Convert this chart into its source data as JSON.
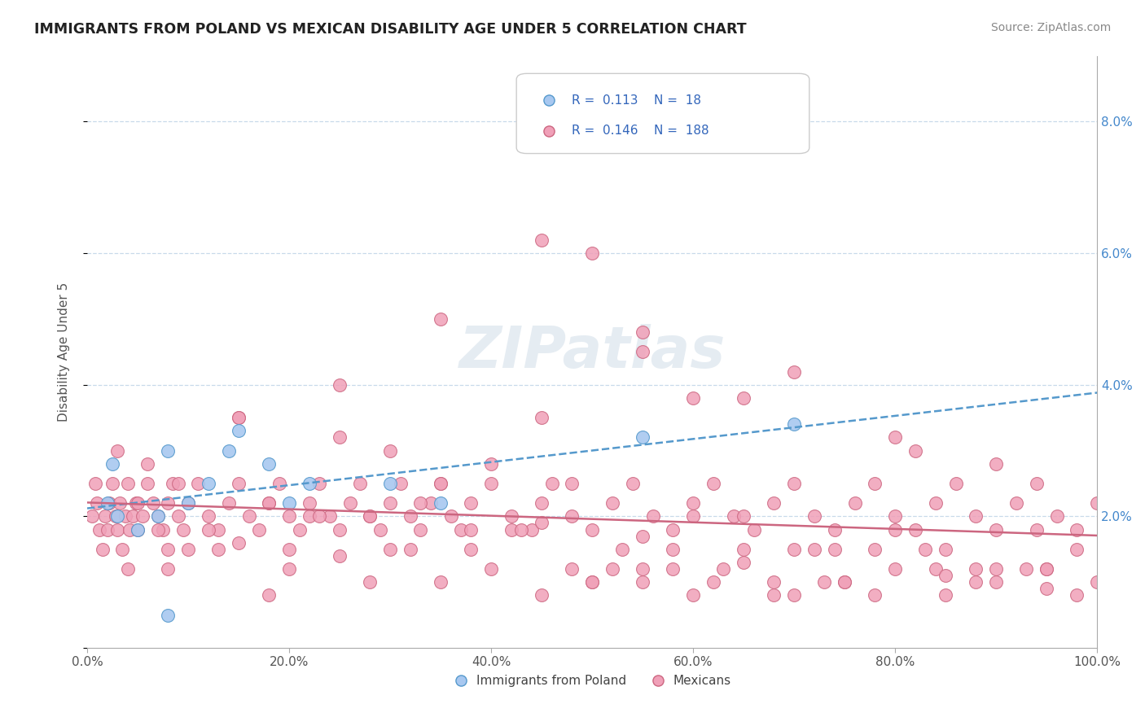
{
  "title": "IMMIGRANTS FROM POLAND VS MEXICAN DISABILITY AGE UNDER 5 CORRELATION CHART",
  "source": "Source: ZipAtlas.com",
  "ylabel": "Disability Age Under 5",
  "xlim": [
    0.0,
    1.0
  ],
  "ylim": [
    0.0,
    0.09
  ],
  "yticks": [
    0.0,
    0.02,
    0.04,
    0.06,
    0.08
  ],
  "ytick_labels": [
    "",
    "2.0%",
    "4.0%",
    "6.0%",
    "8.0%"
  ],
  "xticks": [
    0.0,
    0.2,
    0.4,
    0.6,
    0.8,
    1.0
  ],
  "xtick_labels": [
    "0.0%",
    "20.0%",
    "40.0%",
    "60.0%",
    "80.0%",
    "100.0%"
  ],
  "legend_R_poland": "0.113",
  "legend_N_poland": "18",
  "legend_R_mexican": "0.146",
  "legend_N_mexican": "188",
  "color_poland_fill": "#a8c8f0",
  "color_poland_edge": "#5599cc",
  "color_mexican_fill": "#f0a0b8",
  "color_mexican_edge": "#cc6680",
  "color_poland_trendline": "#5599cc",
  "color_mexican_trendline": "#cc6680",
  "poland_x": [
    0.02,
    0.025,
    0.03,
    0.05,
    0.07,
    0.08,
    0.1,
    0.12,
    0.14,
    0.18,
    0.2,
    0.22,
    0.3,
    0.35,
    0.55,
    0.7,
    0.08,
    0.15
  ],
  "poland_y": [
    0.022,
    0.028,
    0.02,
    0.018,
    0.02,
    0.03,
    0.022,
    0.025,
    0.03,
    0.028,
    0.022,
    0.025,
    0.025,
    0.022,
    0.032,
    0.034,
    0.005,
    0.033
  ],
  "mexican_x": [
    0.005,
    0.008,
    0.01,
    0.012,
    0.015,
    0.018,
    0.02,
    0.022,
    0.025,
    0.028,
    0.03,
    0.032,
    0.035,
    0.038,
    0.04,
    0.042,
    0.045,
    0.048,
    0.05,
    0.055,
    0.06,
    0.065,
    0.07,
    0.075,
    0.08,
    0.085,
    0.09,
    0.095,
    0.1,
    0.11,
    0.12,
    0.13,
    0.14,
    0.15,
    0.16,
    0.17,
    0.18,
    0.19,
    0.2,
    0.21,
    0.22,
    0.23,
    0.24,
    0.25,
    0.26,
    0.27,
    0.28,
    0.29,
    0.3,
    0.31,
    0.32,
    0.33,
    0.34,
    0.35,
    0.36,
    0.37,
    0.38,
    0.4,
    0.42,
    0.44,
    0.45,
    0.46,
    0.48,
    0.5,
    0.52,
    0.54,
    0.56,
    0.58,
    0.6,
    0.62,
    0.64,
    0.66,
    0.68,
    0.7,
    0.72,
    0.74,
    0.76,
    0.78,
    0.8,
    0.82,
    0.84,
    0.86,
    0.88,
    0.9,
    0.92,
    0.94,
    0.96,
    0.98,
    1.0,
    0.03,
    0.06,
    0.09,
    0.15,
    0.25,
    0.35,
    0.5,
    0.65,
    0.8,
    0.9,
    0.55,
    0.45,
    0.3,
    0.7,
    0.4,
    0.6,
    0.48,
    0.82,
    0.72,
    0.58,
    0.38,
    0.28,
    0.18,
    0.08,
    0.04,
    0.12,
    0.22,
    0.32,
    0.42,
    0.52,
    0.62,
    0.74,
    0.84,
    0.94,
    0.65,
    0.75,
    0.85,
    0.95,
    0.55,
    0.45,
    0.35,
    0.25,
    0.15,
    0.07,
    0.13,
    0.23,
    0.33,
    0.43,
    0.53,
    0.63,
    0.73,
    0.83,
    0.93,
    0.5,
    0.6,
    0.7,
    0.8,
    0.9,
    0.2,
    0.4,
    0.55,
    0.68,
    0.78,
    0.88,
    0.98,
    0.48,
    0.38,
    0.28,
    0.18,
    0.08,
    0.58,
    0.68,
    0.78,
    0.88,
    0.98,
    0.35,
    0.45,
    0.55,
    0.65,
    0.75,
    0.85,
    0.95,
    0.3,
    0.5,
    0.7,
    0.9,
    0.1,
    0.2,
    0.6,
    0.8,
    1.0,
    0.05,
    0.15,
    0.25,
    0.45,
    0.55,
    0.65,
    0.85,
    0.95
  ],
  "mexican_y": [
    0.02,
    0.025,
    0.022,
    0.018,
    0.015,
    0.02,
    0.018,
    0.022,
    0.025,
    0.02,
    0.018,
    0.022,
    0.015,
    0.02,
    0.025,
    0.018,
    0.02,
    0.022,
    0.018,
    0.02,
    0.025,
    0.022,
    0.02,
    0.018,
    0.022,
    0.025,
    0.02,
    0.018,
    0.022,
    0.025,
    0.02,
    0.018,
    0.022,
    0.025,
    0.02,
    0.018,
    0.022,
    0.025,
    0.02,
    0.018,
    0.022,
    0.025,
    0.02,
    0.018,
    0.022,
    0.025,
    0.02,
    0.018,
    0.022,
    0.025,
    0.02,
    0.018,
    0.022,
    0.025,
    0.02,
    0.018,
    0.022,
    0.025,
    0.02,
    0.018,
    0.022,
    0.025,
    0.02,
    0.018,
    0.022,
    0.025,
    0.02,
    0.018,
    0.022,
    0.025,
    0.02,
    0.018,
    0.022,
    0.025,
    0.02,
    0.018,
    0.022,
    0.025,
    0.02,
    0.018,
    0.022,
    0.025,
    0.02,
    0.018,
    0.022,
    0.025,
    0.02,
    0.018,
    0.022,
    0.03,
    0.028,
    0.025,
    0.035,
    0.04,
    0.05,
    0.06,
    0.038,
    0.032,
    0.028,
    0.048,
    0.035,
    0.03,
    0.042,
    0.028,
    0.038,
    0.025,
    0.03,
    0.015,
    0.012,
    0.018,
    0.02,
    0.022,
    0.015,
    0.012,
    0.018,
    0.02,
    0.015,
    0.018,
    0.012,
    0.01,
    0.015,
    0.012,
    0.018,
    0.02,
    0.01,
    0.015,
    0.012,
    0.045,
    0.062,
    0.025,
    0.032,
    0.035,
    0.018,
    0.015,
    0.02,
    0.022,
    0.018,
    0.015,
    0.012,
    0.01,
    0.015,
    0.012,
    0.01,
    0.008,
    0.015,
    0.012,
    0.01,
    0.015,
    0.012,
    0.01,
    0.008,
    0.015,
    0.01,
    0.008,
    0.012,
    0.015,
    0.01,
    0.008,
    0.012,
    0.015,
    0.01,
    0.008,
    0.012,
    0.015,
    0.01,
    0.008,
    0.012,
    0.015,
    0.01,
    0.008,
    0.012,
    0.015,
    0.01,
    0.008,
    0.012,
    0.015,
    0.012,
    0.02,
    0.018,
    0.01,
    0.022,
    0.016,
    0.014,
    0.019,
    0.017,
    0.013,
    0.011,
    0.009
  ]
}
